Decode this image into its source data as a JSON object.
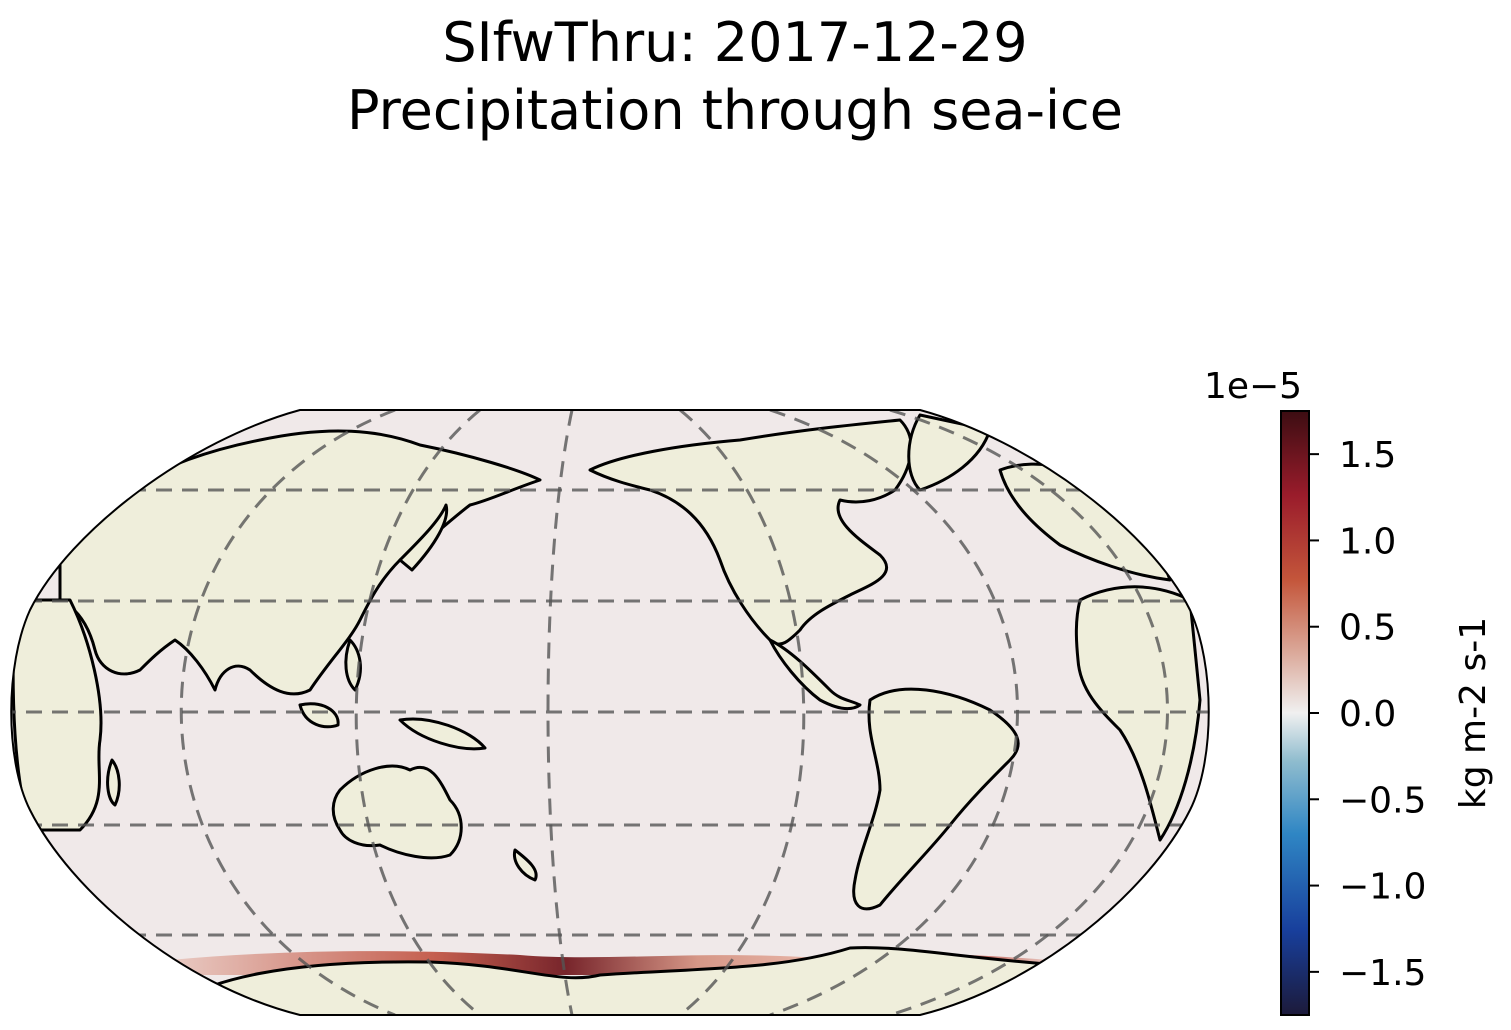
{
  "title": {
    "line1": "SIfwThru: 2017-12-29",
    "line2": "Precipitation through sea-ice"
  },
  "map": {
    "projection": "Robinson",
    "central_longitude": 180,
    "ocean_color": "#f0e9e9",
    "land_color": "#efeedb",
    "coastline_color": "#000000",
    "gridlines": "dashed",
    "feature": "positive precipitation-through-sea-ice band along the Antarctic coast (Ross Sea strongest)"
  },
  "colorbar": {
    "label": "kg m-2 s-1",
    "offset_text": "1e−5",
    "colormap": "balance (blue-white-red)",
    "vmin": -1.75,
    "vmax": 1.75,
    "ticks": [
      1.5,
      1.0,
      0.5,
      0.0,
      -0.5,
      -1.0,
      -1.5
    ],
    "tick_labels": [
      "1.5",
      "1.0",
      "0.5",
      "0.0",
      "−0.5",
      "−1.0",
      "−1.5"
    ],
    "colors": [
      "#1c1a3a",
      "#183f9c",
      "#2f86c4",
      "#8fbcce",
      "#f0f0f0",
      "#dba99a",
      "#c4563b",
      "#9a1c2b",
      "#3c0d12"
    ]
  }
}
